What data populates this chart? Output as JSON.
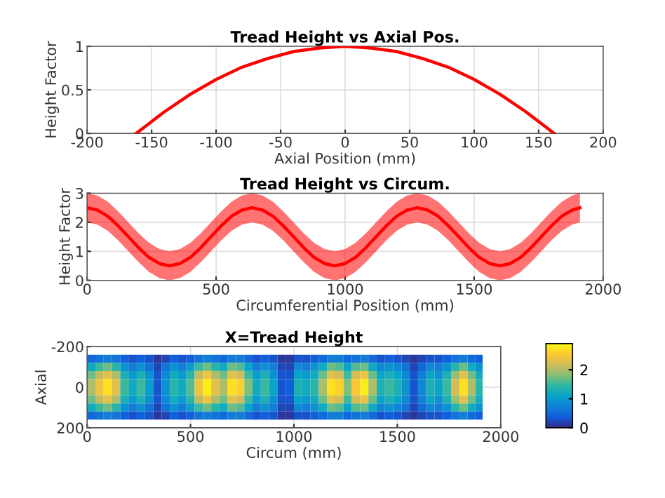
{
  "chart_data": [
    {
      "type": "line",
      "title": "Tread Height vs Axial Pos.",
      "xlabel": "Axial Position (mm)",
      "ylabel": "Height Factor",
      "x": [
        -162,
        -140,
        -120,
        -100,
        -80,
        -60,
        -40,
        -20,
        0,
        20,
        40,
        60,
        80,
        100,
        120,
        140,
        162
      ],
      "series": [
        {
          "color": "#ff0000",
          "values": [
            0,
            0.25,
            0.45,
            0.62,
            0.76,
            0.86,
            0.94,
            0.98,
            1,
            0.98,
            0.94,
            0.86,
            0.76,
            0.62,
            0.45,
            0.25,
            0
          ]
        }
      ],
      "xlim": [
        -200,
        200
      ],
      "xticks": [
        -200,
        -150,
        -100,
        -50,
        0,
        50,
        100,
        150,
        200
      ],
      "ylim": [
        0,
        1
      ],
      "yticks": [
        0,
        0.5,
        1
      ],
      "grid": true
    },
    {
      "type": "line",
      "title": "Tread Height vs Circum.",
      "xlabel": "Circumferential Position (mm)",
      "ylabel": "Height Factor",
      "x": [
        0,
        40,
        80,
        120,
        160,
        200,
        240,
        280,
        320,
        360,
        400,
        440,
        480,
        520,
        560,
        600,
        640,
        680,
        720,
        760,
        800,
        840,
        880,
        920,
        960,
        1000,
        1040,
        1080,
        1120,
        1160,
        1200,
        1240,
        1280,
        1320,
        1360,
        1400,
        1440,
        1480,
        1520,
        1560,
        1600,
        1640,
        1680,
        1720,
        1760,
        1800,
        1840,
        1880,
        1910
      ],
      "series": [
        {
          "color": "#ff0000",
          "values": [
            2.5,
            2.42,
            2.21,
            1.88,
            1.5,
            1.12,
            0.79,
            0.58,
            0.5,
            0.58,
            0.79,
            1.12,
            1.5,
            1.88,
            2.21,
            2.42,
            2.5,
            2.42,
            2.21,
            1.88,
            1.5,
            1.12,
            0.79,
            0.58,
            0.5,
            0.58,
            0.79,
            1.12,
            1.5,
            1.88,
            2.21,
            2.42,
            2.5,
            2.42,
            2.21,
            1.88,
            1.5,
            1.12,
            0.79,
            0.58,
            0.5,
            0.58,
            0.79,
            1.12,
            1.5,
            1.88,
            2.21,
            2.42,
            2.5
          ],
          "lower": [
            2,
            1.92,
            1.71,
            1.38,
            1,
            0.62,
            0.29,
            0.08,
            0,
            0.08,
            0.29,
            0.62,
            1,
            1.38,
            1.71,
            1.92,
            2,
            1.92,
            1.71,
            1.38,
            1,
            0.62,
            0.29,
            0.08,
            0,
            0.08,
            0.29,
            0.62,
            1,
            1.38,
            1.71,
            1.92,
            2,
            1.92,
            1.71,
            1.38,
            1,
            0.62,
            0.29,
            0.08,
            0,
            0.08,
            0.29,
            0.62,
            1,
            1.38,
            1.71,
            1.92,
            2
          ],
          "upper": [
            3,
            2.92,
            2.71,
            2.38,
            2,
            1.62,
            1.29,
            1.08,
            1,
            1.08,
            1.29,
            1.62,
            2,
            2.38,
            2.71,
            2.92,
            3,
            2.92,
            2.71,
            2.38,
            2,
            1.62,
            1.29,
            1.08,
            1,
            1.08,
            1.29,
            1.62,
            2,
            2.38,
            2.71,
            2.92,
            3,
            2.92,
            2.71,
            2.38,
            2,
            1.62,
            1.29,
            1.08,
            1,
            1.08,
            1.29,
            1.62,
            2,
            2.38,
            2.71,
            2.92,
            3
          ]
        }
      ],
      "xlim": [
        0,
        2000
      ],
      "xticks": [
        0,
        500,
        1000,
        1500,
        2000
      ],
      "ylim": [
        0,
        3
      ],
      "yticks": [
        0,
        1,
        2,
        3
      ],
      "grid": true
    },
    {
      "type": "heatmap",
      "title": "X=Tread Height",
      "xlabel": "Circum (mm)",
      "ylabel": "Axial",
      "x": [
        20,
        60,
        100,
        140,
        180,
        220,
        260,
        300,
        340,
        380,
        420,
        460,
        500,
        540,
        580,
        620,
        660,
        700,
        740,
        780,
        820,
        860,
        900,
        940,
        980,
        1020,
        1060,
        1100,
        1140,
        1180,
        1220,
        1260,
        1300,
        1340,
        1380,
        1420,
        1460,
        1500,
        1540,
        1580,
        1620,
        1660,
        1700,
        1740,
        1780,
        1820,
        1860,
        1895
      ],
      "y": [
        -140,
        -100,
        -60,
        -20,
        20,
        60,
        100,
        140
      ],
      "cells": [
        [
          0.5,
          0.6,
          0.7,
          0.6,
          0.4,
          0.3,
          0.4,
          0.3,
          0.1,
          0.2,
          0.4,
          0.3,
          0.4,
          0.6,
          0.7,
          0.6,
          0.5,
          0.7,
          0.7,
          0.5,
          0.3,
          0.4,
          0.3,
          0.1,
          0.1,
          0.3,
          0.3,
          0.4,
          0.5,
          0.7,
          0.7,
          0.5,
          0.6,
          0.7,
          0.5,
          0.3,
          0.4,
          0.3,
          0.2,
          0.1,
          0.2,
          0.3,
          0.3,
          0.4,
          0.6,
          0.7,
          0.5,
          0.4
        ],
        [
          1.2,
          1.5,
          1.7,
          1.4,
          0.9,
          0.7,
          0.9,
          0.6,
          0.2,
          0.6,
          0.9,
          0.7,
          1.0,
          1.5,
          1.7,
          1.4,
          1.2,
          1.7,
          1.6,
          1.1,
          0.7,
          0.9,
          0.7,
          0.2,
          0.2,
          0.8,
          0.7,
          0.9,
          1.2,
          1.7,
          1.6,
          1.1,
          1.6,
          1.7,
          1.2,
          0.8,
          0.9,
          0.8,
          0.6,
          0.2,
          0.5,
          0.8,
          0.7,
          0.9,
          1.4,
          1.7,
          1.2,
          0.9
        ],
        [
          1.7,
          2.1,
          2.3,
          2.0,
          1.3,
          1.0,
          1.3,
          0.9,
          0.3,
          0.8,
          1.2,
          1.0,
          1.4,
          2.1,
          2.4,
          2.0,
          1.7,
          2.3,
          2.2,
          1.5,
          1.0,
          1.3,
          0.9,
          0.3,
          0.3,
          1.1,
          1.0,
          1.2,
          1.7,
          2.3,
          2.2,
          1.5,
          2.2,
          2.4,
          1.7,
          1.1,
          1.3,
          1.1,
          0.8,
          0.3,
          0.7,
          1.1,
          0.9,
          1.3,
          1.9,
          2.3,
          1.7,
          1.2
        ],
        [
          2.0,
          2.4,
          2.7,
          2.3,
          1.5,
          1.2,
          1.5,
          1.0,
          0.3,
          0.9,
          1.4,
          1.2,
          1.6,
          2.4,
          2.8,
          2.3,
          2.0,
          2.7,
          2.6,
          1.8,
          1.2,
          1.5,
          1.1,
          0.3,
          0.4,
          1.3,
          1.2,
          1.4,
          2.0,
          2.7,
          2.6,
          1.8,
          2.5,
          2.8,
          2.0,
          1.3,
          1.5,
          1.3,
          0.9,
          0.3,
          0.8,
          1.3,
          1.1,
          1.5,
          2.2,
          2.7,
          2.0,
          1.4
        ],
        [
          2.0,
          2.4,
          2.7,
          2.3,
          1.5,
          1.2,
          1.5,
          1.0,
          0.3,
          0.9,
          1.4,
          1.2,
          1.6,
          2.4,
          2.8,
          2.3,
          2.0,
          2.7,
          2.6,
          1.8,
          1.2,
          1.5,
          1.1,
          0.3,
          0.4,
          1.3,
          1.2,
          1.4,
          2.0,
          2.7,
          2.6,
          1.8,
          2.5,
          2.8,
          2.0,
          1.3,
          1.5,
          1.3,
          0.9,
          0.3,
          0.8,
          1.3,
          1.1,
          1.5,
          2.2,
          2.7,
          2.0,
          1.4
        ],
        [
          1.7,
          2.1,
          2.3,
          2.0,
          1.3,
          1.0,
          1.3,
          0.9,
          0.3,
          0.8,
          1.2,
          1.0,
          1.4,
          2.1,
          2.4,
          2.0,
          1.7,
          2.3,
          2.2,
          1.5,
          1.0,
          1.3,
          0.9,
          0.3,
          0.3,
          1.1,
          1.0,
          1.2,
          1.7,
          2.3,
          2.2,
          1.5,
          2.2,
          2.4,
          1.7,
          1.1,
          1.3,
          1.1,
          0.8,
          0.3,
          0.7,
          1.1,
          0.9,
          1.3,
          1.9,
          2.3,
          1.7,
          1.2
        ],
        [
          1.2,
          1.5,
          1.7,
          1.4,
          0.9,
          0.7,
          0.9,
          0.6,
          0.2,
          0.6,
          0.9,
          0.7,
          1.0,
          1.5,
          1.7,
          1.4,
          1.2,
          1.7,
          1.6,
          1.1,
          0.7,
          0.9,
          0.7,
          0.2,
          0.2,
          0.8,
          0.7,
          0.9,
          1.2,
          1.7,
          1.6,
          1.1,
          1.6,
          1.7,
          1.2,
          0.8,
          0.9,
          0.8,
          0.6,
          0.2,
          0.5,
          0.8,
          0.7,
          0.9,
          1.4,
          1.7,
          1.2,
          0.9
        ],
        [
          0.5,
          0.6,
          0.7,
          0.6,
          0.4,
          0.3,
          0.4,
          0.3,
          0.1,
          0.2,
          0.4,
          0.3,
          0.4,
          0.6,
          0.7,
          0.6,
          0.5,
          0.7,
          0.7,
          0.5,
          0.3,
          0.4,
          0.3,
          0.1,
          0.1,
          0.3,
          0.3,
          0.4,
          0.5,
          0.7,
          0.7,
          0.5,
          0.6,
          0.7,
          0.5,
          0.3,
          0.4,
          0.3,
          0.2,
          0.1,
          0.2,
          0.3,
          0.3,
          0.4,
          0.6,
          0.7,
          0.5,
          0.4
        ]
      ],
      "colors": [
        "#352a87",
        "#0f5cdd",
        "#1481d6",
        "#06a4ca",
        "#2eb7a4",
        "#87bf77",
        "#d1bb59",
        "#fec832",
        "#f9fb0e"
      ],
      "xlim": [
        0,
        2000
      ],
      "xticks": [
        0,
        500,
        1000,
        1500,
        2000
      ],
      "ylim": [
        200,
        -200
      ],
      "yticks": [
        -200,
        0,
        200
      ],
      "clim": [
        0,
        2.9
      ],
      "cticks": [
        0,
        1,
        2
      ],
      "grid": true
    }
  ]
}
